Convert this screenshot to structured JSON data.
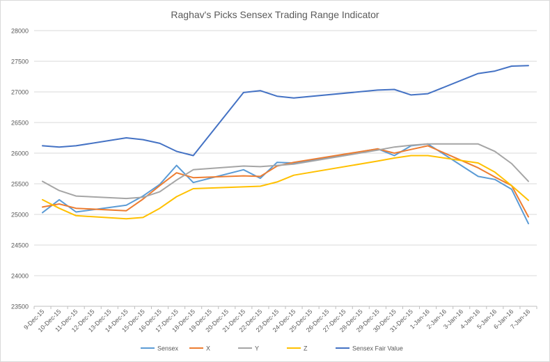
{
  "chart_data": {
    "type": "line",
    "title": "Raghav's Picks Sensex Trading Range Indicator",
    "xlabel": "",
    "ylabel": "",
    "ylim": [
      23500,
      28000
    ],
    "yticks": [
      23500,
      24000,
      24500,
      25000,
      25500,
      26000,
      26500,
      27000,
      27500,
      28000
    ],
    "grid": true,
    "legend_position": "bottom",
    "categories": [
      "9-Dec-15",
      "10-Dec-15",
      "11-Dec-15",
      "12-Dec-15",
      "13-Dec-15",
      "14-Dec-15",
      "15-Dec-15",
      "16-Dec-15",
      "17-Dec-15",
      "18-Dec-15",
      "19-Dec-15",
      "20-Dec-15",
      "21-Dec-15",
      "22-Dec-15",
      "23-Dec-15",
      "24-Dec-15",
      "25-Dec-15",
      "26-Dec-15",
      "27-Dec-15",
      "28-Dec-15",
      "29-Dec-15",
      "30-Dec-15",
      "31-Dec-15",
      "1-Jan-16",
      "2-Jan-16",
      "3-Jan-16",
      "4-Jan-16",
      "5-Jan-16",
      "6-Jan-16",
      "7-Jan-16"
    ],
    "series": [
      {
        "name": "Sensex",
        "color": "#5b9bd5",
        "values": [
          25030,
          25240,
          25040,
          null,
          null,
          25150,
          25300,
          25490,
          25800,
          25520,
          null,
          null,
          25730,
          25590,
          25850,
          25840,
          null,
          null,
          null,
          null,
          26070,
          25960,
          26120,
          26150,
          null,
          null,
          25620,
          25570,
          25410,
          24850
        ]
      },
      {
        "name": "X",
        "color": "#ed7d31",
        "values": [
          25120,
          25170,
          25100,
          null,
          null,
          25060,
          25250,
          25470,
          25680,
          25600,
          null,
          null,
          25630,
          25620,
          25790,
          25850,
          null,
          null,
          null,
          null,
          26070,
          26000,
          26060,
          26120,
          null,
          null,
          25760,
          25610,
          25470,
          24960
        ]
      },
      {
        "name": "Y",
        "color": "#a5a5a5",
        "values": [
          25540,
          25390,
          25300,
          null,
          null,
          25260,
          25280,
          25370,
          25560,
          25730,
          null,
          null,
          25790,
          25780,
          25800,
          25820,
          null,
          null,
          null,
          null,
          26050,
          26100,
          26130,
          26150,
          null,
          null,
          26150,
          26030,
          25830,
          25540
        ]
      },
      {
        "name": "Z",
        "color": "#ffc000",
        "values": [
          25240,
          25100,
          24980,
          null,
          null,
          24930,
          24950,
          25100,
          25290,
          25420,
          null,
          null,
          25450,
          25460,
          25530,
          25640,
          null,
          null,
          null,
          null,
          25870,
          25920,
          25960,
          25960,
          null,
          null,
          25840,
          25690,
          25470,
          25230
        ]
      },
      {
        "name": "Sensex Fair Value",
        "color": "#4472c4",
        "values": [
          26120,
          26100,
          26120,
          null,
          null,
          26250,
          26220,
          26160,
          26030,
          25960,
          null,
          null,
          26990,
          27020,
          26930,
          26900,
          null,
          null,
          null,
          null,
          27030,
          27040,
          26950,
          26970,
          null,
          null,
          27300,
          27340,
          27420,
          27430
        ]
      }
    ]
  }
}
